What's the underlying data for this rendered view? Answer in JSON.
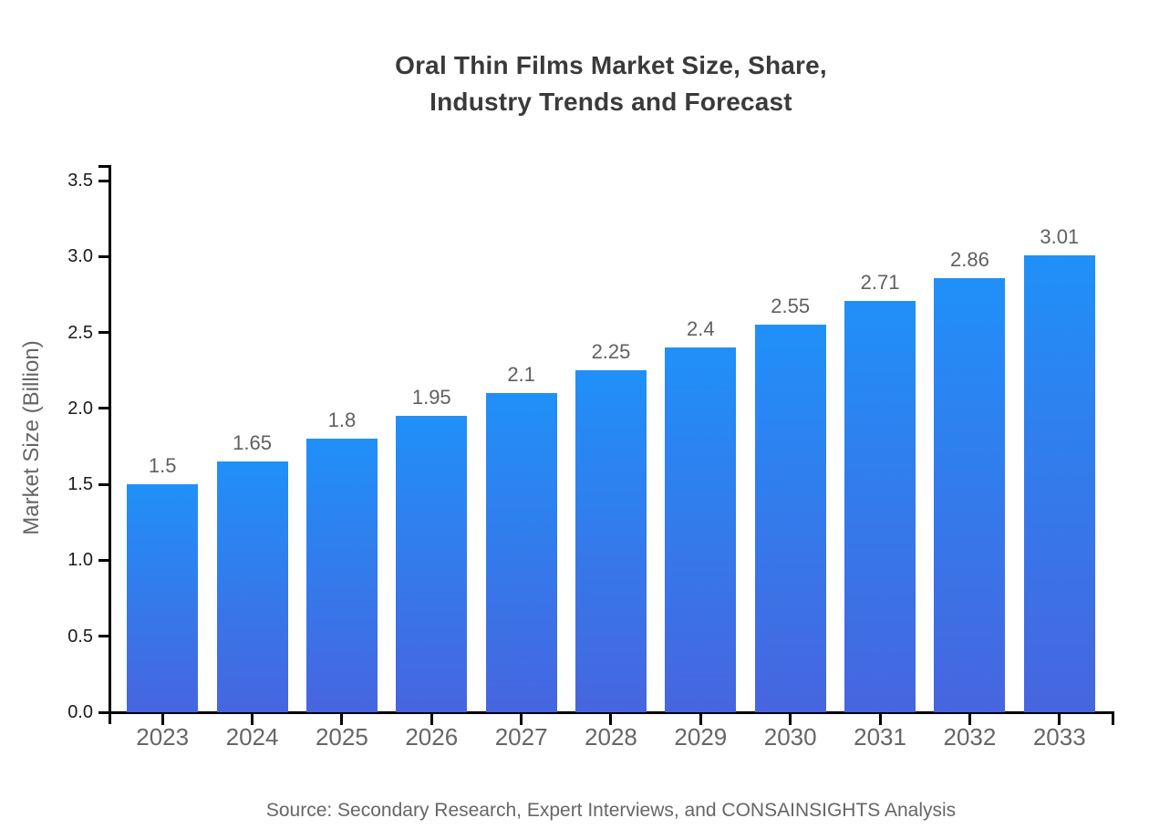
{
  "page": {
    "background": "#ffffff"
  },
  "chart_data": {
    "type": "bar",
    "title": "Oral Thin Films Market Size, Share, Industry Trends and Forecast",
    "title_lines": [
      "Oral Thin Films Market Size, Share,",
      "Industry Trends and Forecast"
    ],
    "xlabel": "",
    "ylabel": "Market Size (Billion)",
    "categories": [
      "2023",
      "2024",
      "2025",
      "2026",
      "2027",
      "2028",
      "2029",
      "2030",
      "2031",
      "2032",
      "2033"
    ],
    "values": [
      1.5,
      1.65,
      1.8,
      1.95,
      2.1,
      2.25,
      2.4,
      2.55,
      2.71,
      2.86,
      3.01
    ],
    "value_labels": [
      "1.5",
      "1.65",
      "1.8",
      "1.95",
      "2.1",
      "2.25",
      "2.4",
      "2.55",
      "2.71",
      "2.86",
      "3.01"
    ],
    "yticks": [
      "0.0",
      "0.5",
      "1.0",
      "1.5",
      "2.0",
      "2.5",
      "3.0",
      "3.5"
    ],
    "ylim": [
      0,
      3.6
    ],
    "grid": false,
    "legend": false,
    "source": "Source: Secondary Research, Expert Interviews, and CONSAINSIGHTS Analysis",
    "colors": {
      "bar_gradient_top": "#2090F8",
      "bar_gradient_bottom": "#4765DF",
      "axis": "#000000",
      "ytick_label": "#1a1a1a",
      "category_label": "#666666",
      "value_label": "#606060",
      "title": "#3a3a3a",
      "source_text": "#666666"
    }
  }
}
